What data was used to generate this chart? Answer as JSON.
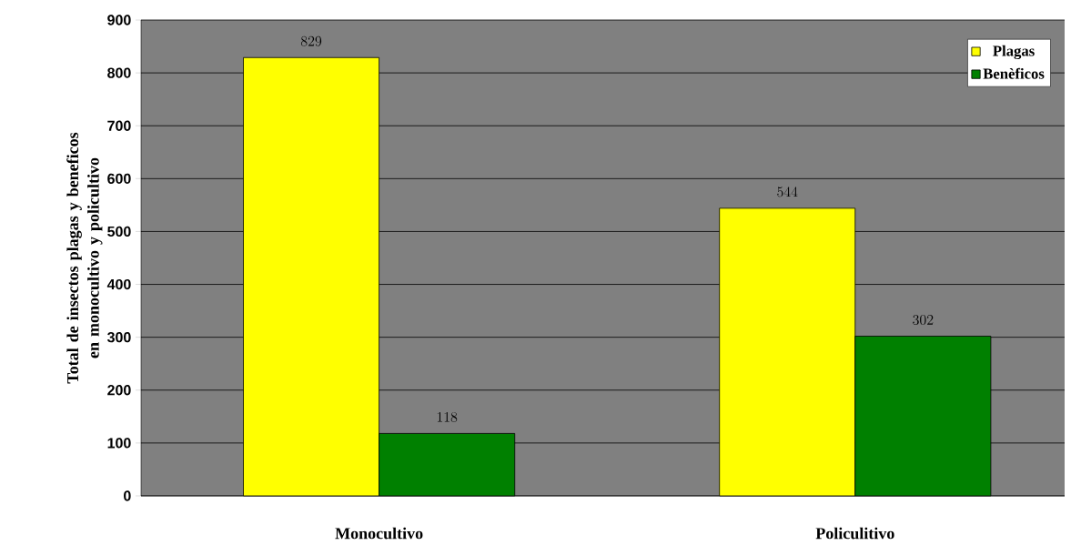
{
  "chart_data": {
    "type": "bar",
    "ylabel": "Total de insectos plagas y beneficos en monocultivo y policultivo",
    "categories": [
      "Monocultivo",
      "Policulitivo"
    ],
    "series": [
      {
        "name": "Plagas",
        "color": "#ffff00",
        "values": [
          829,
          544
        ]
      },
      {
        "name": "Benèficos",
        "color": "#008000",
        "values": [
          118,
          302
        ]
      }
    ],
    "ylim": [
      0,
      900
    ],
    "yticks": [
      0,
      100,
      200,
      300,
      400,
      500,
      600,
      700,
      800,
      900
    ],
    "grid": "y",
    "legend": "top right",
    "data_labels": true
  }
}
